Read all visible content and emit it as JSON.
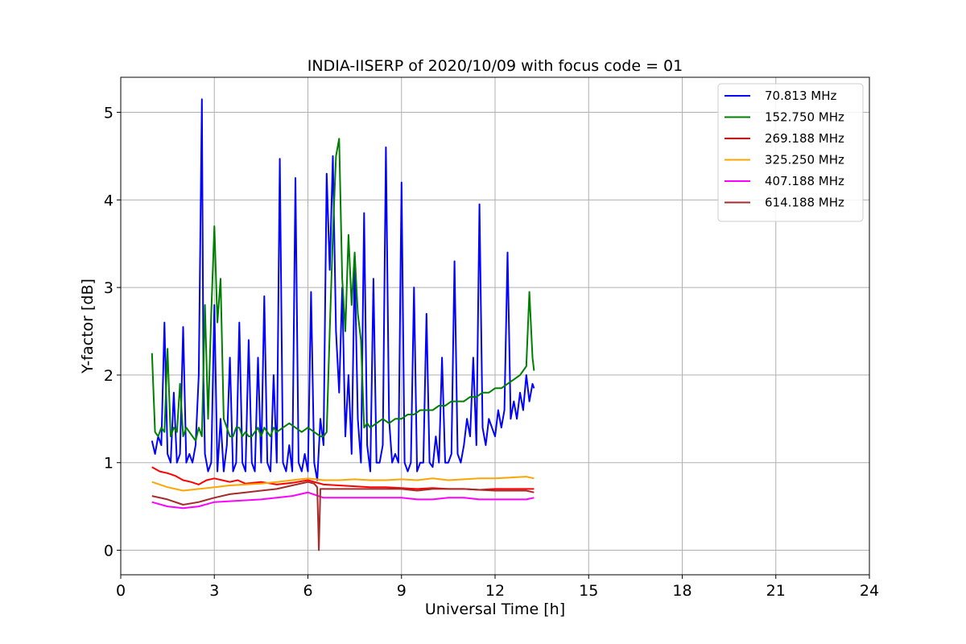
{
  "chart_data": {
    "type": "line",
    "title": "INDIA-IISERP of 2020/10/09 with focus code = 01",
    "xlabel": "Universal Time [h]",
    "ylabel": "Y-factor [dB]",
    "xlim": [
      0,
      24
    ],
    "ylim": [
      -0.28,
      5.4
    ],
    "xticks": [
      0,
      3,
      6,
      9,
      12,
      15,
      18,
      21,
      24
    ],
    "yticks": [
      0,
      1,
      2,
      3,
      4,
      5
    ],
    "grid": true,
    "legend_position": "top-right",
    "series": [
      {
        "name": " 70.813 MHz",
        "color": "#0000ff",
        "x": [
          1.0,
          1.1,
          1.2,
          1.3,
          1.4,
          1.5,
          1.6,
          1.7,
          1.8,
          1.9,
          2.0,
          2.1,
          2.2,
          2.3,
          2.4,
          2.5,
          2.6,
          2.65,
          2.7,
          2.8,
          2.9,
          3.0,
          3.1,
          3.2,
          3.3,
          3.4,
          3.5,
          3.6,
          3.7,
          3.8,
          3.9,
          4.0,
          4.1,
          4.2,
          4.3,
          4.4,
          4.5,
          4.6,
          4.7,
          4.8,
          4.9,
          5.0,
          5.1,
          5.2,
          5.3,
          5.4,
          5.5,
          5.6,
          5.7,
          5.8,
          5.9,
          6.0,
          6.1,
          6.2,
          6.3,
          6.4,
          6.5,
          6.6,
          6.7,
          6.8,
          6.9,
          7.0,
          7.1,
          7.2,
          7.3,
          7.4,
          7.5,
          7.6,
          7.7,
          7.8,
          7.9,
          8.0,
          8.1,
          8.2,
          8.3,
          8.4,
          8.5,
          8.6,
          8.7,
          8.8,
          8.9,
          9.0,
          9.1,
          9.2,
          9.3,
          9.4,
          9.5,
          9.6,
          9.7,
          9.8,
          9.9,
          10.0,
          10.1,
          10.2,
          10.3,
          10.4,
          10.5,
          10.6,
          10.7,
          10.8,
          10.9,
          11.0,
          11.1,
          11.2,
          11.3,
          11.4,
          11.5,
          11.6,
          11.7,
          11.8,
          11.9,
          12.0,
          12.1,
          12.2,
          12.3,
          12.4,
          12.5,
          12.6,
          12.7,
          12.8,
          12.9,
          13.0,
          13.1,
          13.2,
          13.25
        ],
        "y": [
          1.25,
          1.1,
          1.3,
          1.2,
          2.6,
          1.1,
          1.0,
          1.8,
          1.0,
          1.1,
          2.55,
          1.0,
          1.1,
          1.0,
          1.2,
          2.0,
          5.15,
          2.0,
          1.1,
          0.9,
          1.0,
          2.8,
          0.9,
          1.5,
          0.9,
          1.2,
          2.2,
          0.9,
          1.0,
          2.6,
          1.0,
          0.9,
          2.4,
          1.0,
          0.9,
          2.2,
          1.0,
          2.9,
          1.0,
          0.9,
          2.0,
          1.0,
          4.47,
          1.0,
          0.9,
          1.2,
          0.9,
          4.25,
          1.0,
          0.9,
          1.1,
          0.9,
          2.95,
          1.0,
          0.8,
          1.5,
          1.2,
          4.3,
          3.2,
          4.5,
          2.5,
          1.8,
          3.0,
          1.3,
          2.0,
          1.1,
          3.3,
          1.5,
          1.0,
          3.85,
          1.2,
          0.9,
          3.1,
          1.0,
          1.0,
          1.2,
          4.6,
          1.5,
          1.0,
          1.1,
          1.0,
          4.2,
          1.0,
          0.9,
          1.0,
          3.0,
          0.9,
          1.0,
          1.0,
          2.7,
          1.0,
          0.95,
          1.3,
          1.0,
          2.2,
          1.0,
          1.0,
          1.1,
          3.3,
          1.1,
          1.0,
          1.2,
          1.5,
          1.3,
          2.2,
          1.2,
          3.95,
          1.4,
          1.2,
          1.5,
          1.4,
          1.3,
          1.6,
          1.4,
          1.6,
          3.4,
          1.5,
          1.7,
          1.5,
          1.8,
          1.6,
          2.0,
          1.7,
          1.9,
          1.85
        ]
      },
      {
        "name": "152.750 MHz",
        "color": "#008000",
        "x": [
          1.0,
          1.1,
          1.2,
          1.3,
          1.4,
          1.5,
          1.6,
          1.7,
          1.8,
          1.9,
          2.0,
          2.1,
          2.2,
          2.3,
          2.4,
          2.5,
          2.6,
          2.7,
          2.8,
          2.9,
          3.0,
          3.1,
          3.2,
          3.3,
          3.4,
          3.5,
          3.6,
          3.7,
          3.8,
          3.9,
          4.0,
          4.1,
          4.2,
          4.3,
          4.4,
          4.5,
          4.6,
          4.7,
          4.8,
          4.9,
          5.0,
          5.2,
          5.4,
          5.6,
          5.8,
          6.0,
          6.2,
          6.4,
          6.5,
          6.6,
          6.7,
          6.8,
          6.9,
          7.0,
          7.1,
          7.2,
          7.3,
          7.4,
          7.5,
          7.6,
          7.7,
          7.8,
          7.9,
          8.0,
          8.2,
          8.4,
          8.6,
          8.8,
          9.0,
          9.2,
          9.4,
          9.6,
          9.8,
          10.0,
          10.2,
          10.4,
          10.6,
          10.8,
          11.0,
          11.2,
          11.4,
          11.6,
          11.8,
          12.0,
          12.2,
          12.4,
          12.6,
          12.8,
          13.0,
          13.1,
          13.2,
          13.25
        ],
        "y": [
          2.25,
          1.35,
          1.3,
          1.4,
          1.35,
          2.3,
          1.3,
          1.4,
          1.35,
          1.9,
          1.3,
          1.4,
          1.35,
          1.3,
          1.25,
          1.4,
          1.3,
          2.8,
          1.5,
          2.7,
          3.7,
          2.6,
          3.1,
          1.5,
          1.4,
          1.3,
          1.3,
          1.4,
          1.4,
          1.3,
          1.35,
          1.3,
          1.3,
          1.35,
          1.4,
          1.3,
          1.4,
          1.35,
          1.3,
          1.4,
          1.35,
          1.4,
          1.45,
          1.4,
          1.35,
          1.4,
          1.35,
          1.3,
          1.3,
          1.35,
          2.5,
          3.6,
          4.5,
          4.7,
          3.1,
          2.5,
          3.6,
          2.8,
          3.4,
          2.7,
          2.4,
          1.4,
          1.45,
          1.4,
          1.45,
          1.5,
          1.45,
          1.5,
          1.5,
          1.55,
          1.55,
          1.6,
          1.6,
          1.6,
          1.65,
          1.65,
          1.7,
          1.7,
          1.7,
          1.75,
          1.75,
          1.8,
          1.8,
          1.85,
          1.85,
          1.9,
          1.95,
          2.0,
          2.1,
          2.95,
          2.2,
          2.05
        ]
      },
      {
        "name": "269.188 MHz",
        "color": "#ff0000",
        "x": [
          1.0,
          1.25,
          1.5,
          1.75,
          2.0,
          2.25,
          2.5,
          2.75,
          3.0,
          3.25,
          3.5,
          3.75,
          4.0,
          4.5,
          5.0,
          5.5,
          6.0,
          6.5,
          7.0,
          7.5,
          8.0,
          8.5,
          9.0,
          9.5,
          10.0,
          10.5,
          11.0,
          11.5,
          12.0,
          12.5,
          13.0,
          13.25
        ],
        "y": [
          0.95,
          0.9,
          0.88,
          0.85,
          0.8,
          0.78,
          0.75,
          0.8,
          0.82,
          0.8,
          0.78,
          0.8,
          0.76,
          0.78,
          0.75,
          0.77,
          0.8,
          0.75,
          0.74,
          0.73,
          0.72,
          0.72,
          0.71,
          0.7,
          0.71,
          0.7,
          0.7,
          0.69,
          0.7,
          0.7,
          0.7,
          0.7
        ]
      },
      {
        "name": "325.250 MHz",
        "color": "#ffa500",
        "x": [
          1.0,
          1.5,
          2.0,
          2.5,
          3.0,
          3.5,
          4.0,
          4.5,
          5.0,
          5.5,
          6.0,
          6.5,
          7.0,
          7.5,
          8.0,
          8.5,
          9.0,
          9.5,
          10.0,
          10.5,
          11.0,
          11.5,
          12.0,
          12.5,
          13.0,
          13.25
        ],
        "y": [
          0.78,
          0.72,
          0.68,
          0.7,
          0.72,
          0.74,
          0.75,
          0.76,
          0.78,
          0.8,
          0.82,
          0.8,
          0.8,
          0.81,
          0.8,
          0.8,
          0.81,
          0.8,
          0.82,
          0.8,
          0.81,
          0.82,
          0.82,
          0.83,
          0.84,
          0.82
        ]
      },
      {
        "name": "407.188 MHz",
        "color": "#ff00ff",
        "x": [
          1.0,
          1.5,
          2.0,
          2.5,
          3.0,
          3.5,
          4.0,
          4.5,
          5.0,
          5.5,
          6.0,
          6.5,
          7.0,
          7.5,
          8.0,
          8.5,
          9.0,
          9.5,
          10.0,
          10.5,
          11.0,
          11.5,
          12.0,
          12.5,
          13.0,
          13.25
        ],
        "y": [
          0.55,
          0.5,
          0.48,
          0.5,
          0.55,
          0.56,
          0.57,
          0.58,
          0.6,
          0.62,
          0.66,
          0.6,
          0.6,
          0.6,
          0.6,
          0.6,
          0.6,
          0.58,
          0.58,
          0.6,
          0.6,
          0.58,
          0.58,
          0.58,
          0.58,
          0.6
        ]
      },
      {
        "name": "614.188 MHz",
        "color": "#a52a2a",
        "x": [
          1.0,
          1.5,
          2.0,
          2.5,
          3.0,
          3.5,
          4.0,
          4.5,
          5.0,
          5.5,
          6.0,
          6.2,
          6.3,
          6.35,
          6.4,
          6.5,
          7.0,
          7.5,
          8.0,
          8.5,
          9.0,
          9.5,
          10.0,
          10.5,
          11.0,
          11.5,
          12.0,
          12.5,
          13.0,
          13.25
        ],
        "y": [
          0.62,
          0.58,
          0.52,
          0.55,
          0.6,
          0.64,
          0.66,
          0.68,
          0.7,
          0.74,
          0.78,
          0.76,
          0.72,
          0.0,
          0.7,
          0.7,
          0.7,
          0.7,
          0.7,
          0.7,
          0.7,
          0.68,
          0.7,
          0.7,
          0.7,
          0.69,
          0.68,
          0.68,
          0.68,
          0.66
        ]
      }
    ]
  }
}
